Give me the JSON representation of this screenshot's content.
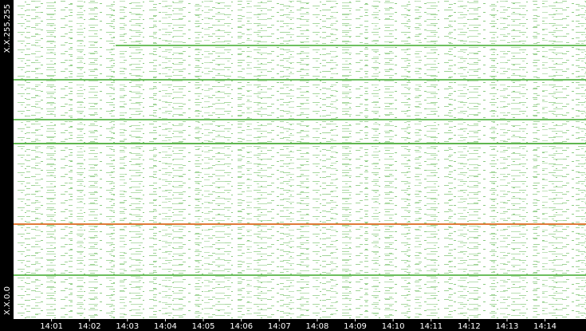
{
  "chart_data": {
    "type": "line",
    "xlim": [
      0,
      15.08
    ],
    "xticks": [
      {
        "value": 1,
        "label": "14:01"
      },
      {
        "value": 2,
        "label": "14:02"
      },
      {
        "value": 3,
        "label": "14:03"
      },
      {
        "value": 4,
        "label": "14:04"
      },
      {
        "value": 5,
        "label": "14:05"
      },
      {
        "value": 6,
        "label": "14:06"
      },
      {
        "value": 7,
        "label": "14:07"
      },
      {
        "value": 8,
        "label": "14:08"
      },
      {
        "value": 9,
        "label": "14:09"
      },
      {
        "value": 10,
        "label": "14:10"
      },
      {
        "value": 11,
        "label": "14:11"
      },
      {
        "value": 12,
        "label": "14:12"
      },
      {
        "value": 13,
        "label": "14:13"
      },
      {
        "value": 14,
        "label": "14:14"
      }
    ],
    "ylim": [
      0,
      65535
    ],
    "yticks": [
      {
        "value": 0,
        "label": "X.X.0.0"
      },
      {
        "value": 65535,
        "label": "X.X.255.255"
      }
    ],
    "series": [
      {
        "color": "#6dbf5f",
        "x": [
          2.69,
          15.08
        ],
        "values": [
          56797,
          56797
        ]
      },
      {
        "color": "#6dbf5f",
        "x": [
          0,
          15.08
        ],
        "values": [
          49571,
          49571
        ]
      },
      {
        "color": "#6dbf5f",
        "x": [
          0,
          15.08
        ],
        "values": [
          41169,
          41169
        ]
      },
      {
        "color": "#5fb64f",
        "x": [
          0,
          15.08
        ],
        "values": [
          36128,
          36128
        ]
      },
      {
        "color": "#e07b39",
        "x": [
          0,
          15.08
        ],
        "values": [
          19156,
          19156
        ]
      },
      {
        "color": "#6dbf5f",
        "x": [
          0,
          15.08
        ],
        "values": [
          8402,
          8402
        ]
      }
    ]
  }
}
